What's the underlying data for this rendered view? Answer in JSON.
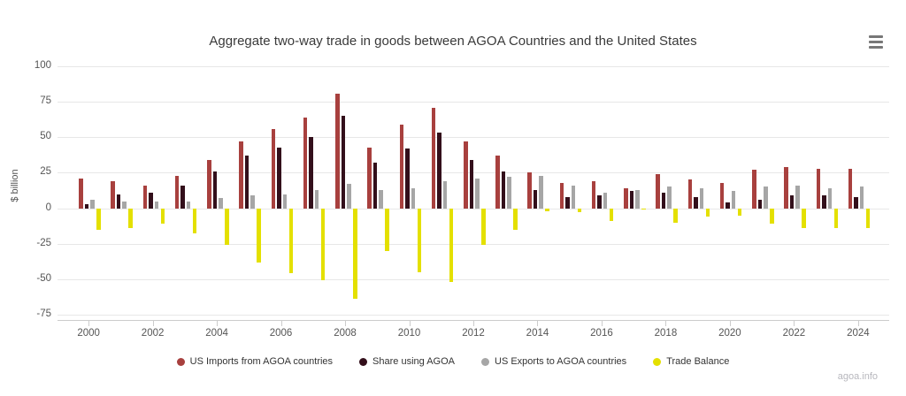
{
  "header": {
    "menu_icon": "hamburger-icon"
  },
  "footer": {
    "watermark": "agoa.info"
  },
  "chart_data": {
    "type": "bar",
    "title": "Aggregate two-way trade in goods between AGOA Countries and the United States",
    "xlabel": "",
    "ylabel": "$ billion",
    "ylim": [
      -75,
      100
    ],
    "yticks": [
      100,
      75,
      50,
      25,
      0,
      -25,
      -50,
      -75
    ],
    "grid": true,
    "legend_position": "bottom",
    "categories": [
      2000,
      2001,
      2002,
      2003,
      2004,
      2005,
      2006,
      2007,
      2008,
      2009,
      2010,
      2011,
      2012,
      2013,
      2014,
      2015,
      2016,
      2017,
      2018,
      2019,
      2020,
      2021,
      2022,
      2023,
      2024
    ],
    "xtick_labels": [
      "2000",
      "2002",
      "2004",
      "2006",
      "2008",
      "2010",
      "2012",
      "2014",
      "2016",
      "2018",
      "2020",
      "2022",
      "2024"
    ],
    "series": [
      {
        "name": "US Imports from AGOA countries",
        "color": "#a8403e",
        "values": [
          21,
          19,
          16,
          23,
          34,
          47,
          56,
          64,
          81,
          43,
          59,
          71,
          47,
          37,
          25,
          18,
          19,
          14,
          24,
          20,
          18,
          27,
          29,
          28,
          28
        ]
      },
      {
        "name": "Share using AGOA",
        "color": "#330f1b",
        "values": [
          3,
          10,
          11,
          16,
          26,
          37,
          43,
          50,
          65,
          32,
          42,
          53,
          34,
          26,
          13,
          8,
          9,
          12,
          11,
          8,
          4,
          6,
          9,
          9,
          8
        ]
      },
      {
        "name": "US Exports to AGOA countries",
        "color": "#a6a6a6",
        "values": [
          6,
          5,
          5,
          5,
          7,
          9,
          10,
          13,
          17,
          13,
          14,
          19,
          21,
          22,
          23,
          16,
          11,
          13,
          15,
          14,
          12,
          15,
          16,
          14,
          15
        ]
      },
      {
        "name": "Trade Balance",
        "color": "#e4e000",
        "values": [
          -15,
          -14,
          -11,
          -18,
          -26,
          -38,
          -46,
          -51,
          -64,
          -30,
          -45,
          -52,
          -26,
          -15,
          -2,
          -3,
          -9,
          -1,
          -10,
          -6,
          -5,
          -11,
          -14,
          -14,
          -14
        ]
      }
    ]
  }
}
